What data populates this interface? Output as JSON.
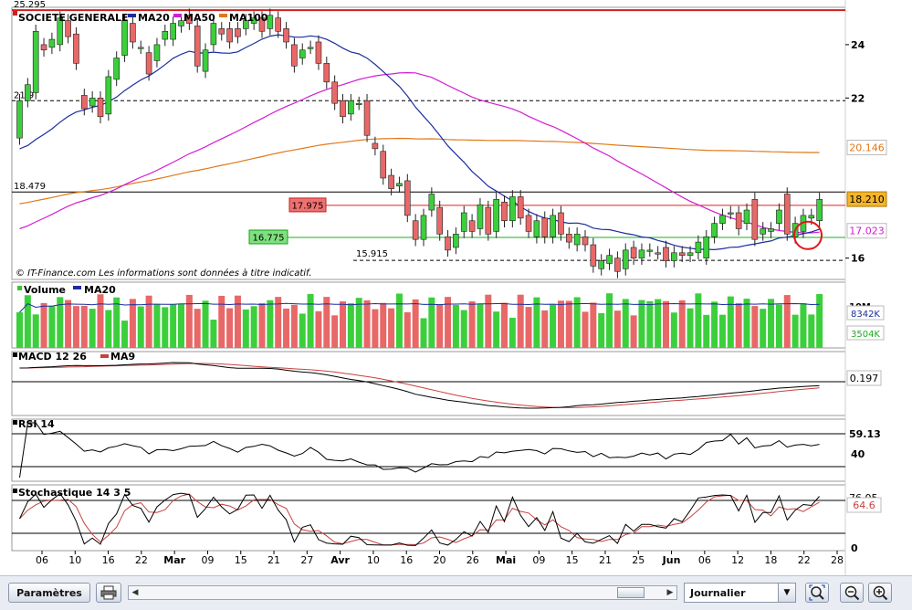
{
  "chart_data": {
    "type": "candlestick",
    "title": "SOCIETE GENERALE",
    "footer": "© IT-Finance.com   Les informations sont données à titre indicatif.",
    "price_panel": {
      "ylim": [
        15.2,
        25.4
      ],
      "y_ticks": [
        16,
        22,
        24
      ],
      "right_tags": {
        "ma100": "20.146",
        "last": "18.210",
        "ma50": "17.023"
      },
      "left_levels": [
        {
          "label": "25.295",
          "value": 25.295,
          "color": "#d21e1e"
        },
        {
          "label": "21.9",
          "value": 21.9,
          "color": "#000000"
        },
        {
          "label": "18.479",
          "value": 18.479,
          "color": "#000000"
        }
      ],
      "support_lines": [
        {
          "label": "17.975",
          "value": 17.975,
          "color": "#e02020"
        },
        {
          "label": "16.775",
          "value": 16.775,
          "color": "#18b018"
        },
        {
          "label": "15.915",
          "value": 15.915,
          "color": "#000000"
        }
      ],
      "legend": [
        {
          "name": "MA20",
          "color": "#1a2e9e"
        },
        {
          "name": "MA50",
          "color": "#d21ed2"
        },
        {
          "name": "MA100",
          "color": "#e07818"
        }
      ],
      "candles": [
        [
          20.5,
          21.9
        ],
        [
          21.9,
          22.5
        ],
        [
          22.2,
          24.5
        ],
        [
          24.0,
          23.8
        ],
        [
          23.9,
          24.2
        ],
        [
          24.0,
          25.0
        ],
        [
          24.9,
          24.3
        ],
        [
          24.4,
          23.3
        ],
        [
          22.1,
          21.6
        ],
        [
          21.7,
          22.0
        ],
        [
          22.0,
          21.3
        ],
        [
          21.4,
          22.8
        ],
        [
          22.7,
          23.5
        ],
        [
          23.6,
          24.9
        ],
        [
          24.8,
          24.1
        ],
        [
          23.9,
          23.9
        ],
        [
          23.7,
          22.9
        ],
        [
          23.4,
          24.0
        ],
        [
          24.2,
          24.5
        ],
        [
          24.2,
          24.8
        ],
        [
          24.7,
          24.9
        ],
        [
          25.1,
          24.8
        ],
        [
          24.7,
          23.2
        ],
        [
          23.0,
          23.8
        ],
        [
          24.0,
          24.8
        ],
        [
          24.6,
          24.4
        ],
        [
          24.6,
          24.1
        ],
        [
          24.6,
          24.3
        ],
        [
          24.6,
          24.9
        ],
        [
          24.8,
          25.0
        ],
        [
          25.0,
          24.5
        ],
        [
          24.6,
          25.1
        ],
        [
          25.0,
          24.5
        ],
        [
          24.6,
          24.1
        ],
        [
          24.0,
          23.2
        ],
        [
          23.5,
          23.8
        ],
        [
          23.9,
          23.9
        ],
        [
          24.1,
          23.3
        ],
        [
          23.3,
          22.6
        ],
        [
          22.6,
          21.8
        ],
        [
          21.9,
          21.3
        ],
        [
          21.4,
          21.9
        ],
        [
          21.8,
          21.8
        ],
        [
          21.9,
          20.6
        ],
        [
          20.3,
          20.1
        ],
        [
          20.0,
          19.0
        ],
        [
          19.1,
          18.6
        ],
        [
          18.7,
          18.8
        ],
        [
          18.9,
          17.6
        ],
        [
          17.4,
          16.7
        ],
        [
          16.7,
          17.6
        ],
        [
          17.8,
          18.4
        ],
        [
          17.9,
          16.9
        ],
        [
          16.8,
          16.3
        ],
        [
          16.4,
          16.9
        ],
        [
          17.0,
          17.7
        ],
        [
          17.4,
          17.0
        ],
        [
          17.1,
          18.0
        ],
        [
          17.9,
          16.9
        ],
        [
          17.0,
          18.2
        ],
        [
          18.1,
          17.4
        ],
        [
          17.4,
          18.3
        ],
        [
          18.3,
          17.5
        ],
        [
          17.6,
          17.0
        ],
        [
          16.8,
          17.4
        ],
        [
          17.5,
          16.8
        ],
        [
          16.8,
          17.6
        ],
        [
          17.7,
          16.9
        ],
        [
          16.9,
          16.6
        ],
        [
          16.5,
          16.9
        ],
        [
          16.8,
          16.5
        ],
        [
          16.5,
          15.7
        ],
        [
          15.6,
          15.9
        ],
        [
          15.8,
          16.1
        ],
        [
          16.0,
          15.5
        ],
        [
          15.6,
          16.3
        ],
        [
          16.4,
          16.0
        ],
        [
          16.0,
          16.3
        ],
        [
          16.3,
          16.3
        ],
        [
          16.2,
          16.2
        ],
        [
          16.4,
          15.9
        ],
        [
          15.9,
          16.2
        ],
        [
          16.2,
          16.1
        ],
        [
          16.1,
          16.2
        ],
        [
          16.2,
          16.6
        ],
        [
          16.0,
          16.8
        ],
        [
          16.8,
          17.3
        ],
        [
          17.3,
          17.6
        ],
        [
          17.7,
          17.7
        ],
        [
          17.7,
          17.1
        ],
        [
          17.3,
          17.8
        ],
        [
          18.2,
          16.7
        ],
        [
          16.9,
          17.1
        ],
        [
          17.0,
          17.1
        ],
        [
          17.3,
          17.8
        ],
        [
          18.4,
          16.9
        ],
        [
          16.8,
          17.3
        ],
        [
          17.0,
          17.6
        ],
        [
          17.5,
          17.6
        ],
        [
          17.4,
          18.2
        ]
      ]
    },
    "volume_panel": {
      "legend": [
        {
          "name": "Volume",
          "color": "#31c831"
        },
        {
          "name": "MA20",
          "color": "#1a2e9e"
        }
      ],
      "tags": [
        "8342K",
        "3504K"
      ],
      "top_label": "10M"
    },
    "macd_panel": {
      "legend": [
        {
          "name": "MACD 12 26",
          "color": "#000000"
        },
        {
          "name": "MA9",
          "color": "#c84040"
        }
      ],
      "tag": "0.197"
    },
    "rsi_panel": {
      "legend": [
        {
          "name": "RSI 14",
          "color": "#000000"
        }
      ],
      "tag": "59.13",
      "tick": "40"
    },
    "stoch_panel": {
      "legend": [
        {
          "name": "Stochastique 14 3 5",
          "color": "#000000"
        }
      ],
      "tags": [
        "76.05",
        "64.6"
      ],
      "tick": "0"
    },
    "x_ticks": [
      "06",
      "10",
      "16",
      "22",
      "Mar",
      "09",
      "15",
      "21",
      "27",
      "Avr",
      "10",
      "16",
      "20",
      "26",
      "Mai",
      "09",
      "15",
      "21",
      "25",
      "Jun",
      "06",
      "12",
      "18",
      "22",
      "28"
    ]
  },
  "toolbar": {
    "params_label": "Paramètres",
    "period_value": "Journalier"
  }
}
